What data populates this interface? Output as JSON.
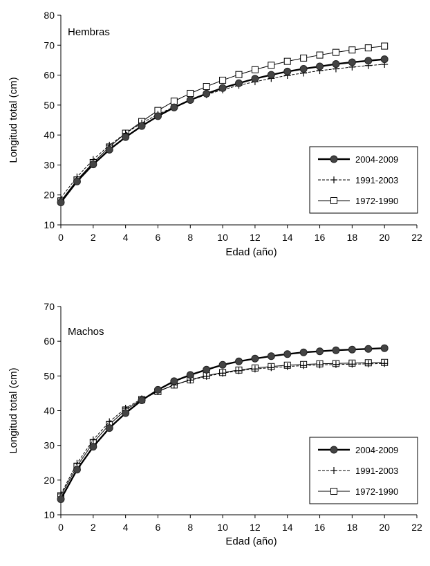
{
  "chart_data": [
    {
      "type": "line",
      "title": "",
      "panel_label": "Hembras",
      "xlabel": "Edad (año)",
      "ylabel": "Longitud total (cm)",
      "xlim": [
        0,
        22
      ],
      "ylim": [
        10,
        80
      ],
      "xticks": [
        0,
        2,
        4,
        6,
        8,
        10,
        12,
        14,
        16,
        18,
        20,
        22
      ],
      "yticks": [
        10,
        20,
        30,
        40,
        50,
        60,
        70,
        80
      ],
      "grid": false,
      "legend_position": "bottom-right",
      "x": [
        0,
        1,
        2,
        3,
        4,
        5,
        6,
        7,
        8,
        9,
        10,
        11,
        12,
        13,
        14,
        15,
        16,
        17,
        18,
        19,
        20
      ],
      "series": [
        {
          "name": "2004-2009",
          "marker": "filled-circle",
          "line": "solid-thick",
          "values": [
            17.5,
            24.5,
            30.2,
            35.1,
            39.3,
            43.0,
            46.3,
            49.2,
            51.7,
            53.8,
            55.7,
            57.3,
            58.8,
            60.1,
            61.2,
            62.1,
            62.9,
            63.7,
            64.3,
            64.8,
            65.3
          ]
        },
        {
          "name": "1991-2003",
          "marker": "plus",
          "line": "dashed",
          "values": [
            19.0,
            26.0,
            31.8,
            36.6,
            40.6,
            44.0,
            46.9,
            49.4,
            51.6,
            53.5,
            55.1,
            56.6,
            57.8,
            58.9,
            59.9,
            60.7,
            61.5,
            62.1,
            62.7,
            63.2,
            63.6
          ]
        },
        {
          "name": "1972-1990",
          "marker": "open-square",
          "line": "solid-thin",
          "values": [
            18.0,
            25.0,
            30.8,
            36.0,
            40.6,
            44.5,
            48.2,
            51.3,
            53.9,
            56.2,
            58.3,
            60.2,
            61.8,
            63.3,
            64.6,
            65.7,
            66.7,
            67.6,
            68.4,
            69.1,
            69.7
          ]
        }
      ]
    },
    {
      "type": "line",
      "title": "",
      "panel_label": "Machos",
      "xlabel": "Edad (año)",
      "ylabel": "Longitud total (cm)",
      "xlim": [
        0,
        22
      ],
      "ylim": [
        10,
        70
      ],
      "xticks": [
        0,
        2,
        4,
        6,
        8,
        10,
        12,
        14,
        16,
        18,
        20,
        22
      ],
      "yticks": [
        10,
        20,
        30,
        40,
        50,
        60,
        70
      ],
      "grid": false,
      "legend_position": "bottom-right",
      "x": [
        0,
        1,
        2,
        3,
        4,
        5,
        6,
        7,
        8,
        9,
        10,
        11,
        12,
        13,
        14,
        15,
        16,
        17,
        18,
        19,
        20
      ],
      "series": [
        {
          "name": "2004-2009",
          "marker": "filled-circle",
          "line": "solid-thick",
          "values": [
            14.5,
            23.0,
            29.6,
            35.0,
            39.3,
            43.0,
            46.0,
            48.5,
            50.3,
            51.8,
            53.2,
            54.2,
            55.0,
            55.7,
            56.3,
            56.8,
            57.1,
            57.4,
            57.6,
            57.8,
            58.0
          ]
        },
        {
          "name": "1991-2003",
          "marker": "plus",
          "line": "dashed",
          "values": [
            16.0,
            24.8,
            31.6,
            36.8,
            40.7,
            43.4,
            45.6,
            47.4,
            48.8,
            49.9,
            50.8,
            51.5,
            52.0,
            52.4,
            52.7,
            53.0,
            53.2,
            53.3,
            53.4,
            53.5,
            53.6
          ]
        },
        {
          "name": "1972-1990",
          "marker": "open-square",
          "line": "solid-thin",
          "values": [
            15.5,
            24.0,
            30.8,
            36.0,
            40.2,
            43.2,
            45.5,
            47.4,
            48.9,
            50.1,
            51.0,
            51.7,
            52.3,
            52.7,
            53.1,
            53.3,
            53.5,
            53.6,
            53.7,
            53.8,
            53.9
          ]
        }
      ]
    }
  ]
}
